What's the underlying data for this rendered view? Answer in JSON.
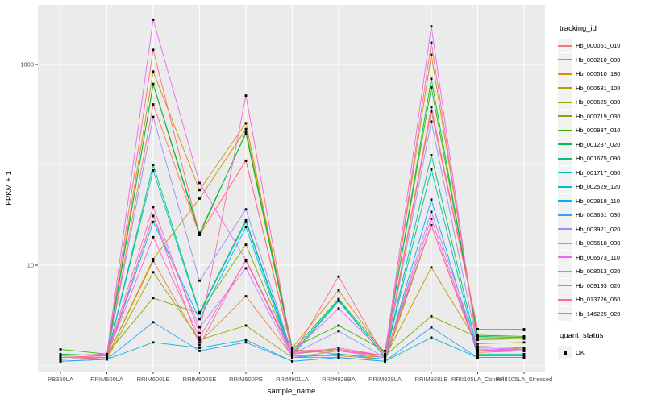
{
  "figure": {
    "y_axis_title": "FPKM + 1",
    "x_axis_title": "sample_name",
    "legend_title": "tracking_id",
    "quant_legend_title": "quant_status",
    "quant_legend_label": "OK",
    "panel_bg": "#EBEBEB",
    "grid_color": "#FFFFFF",
    "axis_text_color": "#4D4D4D",
    "point_color": "#000000",
    "legend_key_bg": "#F2F2F2"
  },
  "chart_data": {
    "type": "line",
    "title": "",
    "xlabel": "sample_name",
    "ylabel": "FPKM + 1",
    "y_scale": "log10",
    "y_tick_values": [
      1000,
      10
    ],
    "y_tick_labels": [
      "1000",
      "10"
    ],
    "y_minor_gridlines": [
      100,
      1
    ],
    "ylim": [
      0.87,
      3900
    ],
    "grid": true,
    "legend_position": "right",
    "point_shape": "filled-square",
    "point_legend": {
      "title": "quant_status",
      "entries": [
        "OK"
      ]
    },
    "categories": [
      "PB350LA",
      "RRIM600LA",
      "RRIM600LE",
      "RRIM600SE",
      "RRIM600PE",
      "RRIM901LA",
      "RRIM928BA",
      "RRIM928LA",
      "RRIM928LE",
      "RRII105LA_Control",
      "RRII105LA_Stressed"
    ],
    "series": [
      {
        "name": "Hb_000061_010",
        "color": "#F8766D",
        "values": [
          1.2,
          1.2,
          400,
          20,
          110,
          1.35,
          1.4,
          1.25,
          375,
          2.3,
          2.25
        ]
      },
      {
        "name": "Hb_000210_030",
        "color": "#EA8331",
        "values": [
          1.15,
          1.2,
          11,
          1.7,
          4.9,
          1.25,
          1.25,
          1.15,
          25,
          1.35,
          1.4
        ]
      },
      {
        "name": "Hb_000510_180",
        "color": "#D89000",
        "values": [
          1.2,
          1.25,
          850,
          56,
          260,
          1.5,
          5.6,
          1.3,
          1250,
          1.8,
          1.85
        ]
      },
      {
        "name": "Hb_000531_100",
        "color": "#C09B00",
        "values": [
          1.15,
          1.2,
          11.5,
          46,
          227,
          1.45,
          1.3,
          1.2,
          9.5,
          1.65,
          1.7
        ]
      },
      {
        "name": "Hb_000625_080",
        "color": "#A3A500",
        "values": [
          1.1,
          1.15,
          8.5,
          1.8,
          2.5,
          1.2,
          1.2,
          1.1,
          25,
          1.4,
          1.5
        ]
      },
      {
        "name": "Hb_000719_030",
        "color": "#7CAE00",
        "values": [
          1.25,
          1.3,
          4.7,
          3.3,
          16,
          1.3,
          1.45,
          1.25,
          3.1,
          1.9,
          1.85
        ]
      },
      {
        "name": "Hb_000937_010",
        "color": "#39B600",
        "values": [
          1.45,
          1.3,
          630,
          20,
          210,
          1.5,
          2.5,
          1.4,
          590,
          2.0,
          1.95
        ]
      },
      {
        "name": "Hb_001287_020",
        "color": "#00BB4E",
        "values": [
          1.3,
          1.25,
          640,
          21,
          205,
          1.4,
          4.6,
          1.3,
          720,
          1.95,
          1.9
        ]
      },
      {
        "name": "Hb_001675_090",
        "color": "#00C087",
        "values": [
          1.2,
          1.2,
          100,
          3.4,
          28,
          1.3,
          4.5,
          1.2,
          125,
          1.4,
          1.4
        ]
      },
      {
        "name": "Hb_001717_060",
        "color": "#00C0B2",
        "values": [
          1.2,
          1.2,
          88,
          3.3,
          27,
          1.25,
          4.4,
          1.2,
          90,
          1.3,
          1.3
        ]
      },
      {
        "name": "Hb_002529_120",
        "color": "#00BCD8",
        "values": [
          1.1,
          1.15,
          1.7,
          1.5,
          1.8,
          1.1,
          1.2,
          1.1,
          1.9,
          1.2,
          1.2
        ]
      },
      {
        "name": "Hb_002818_110",
        "color": "#00B0F6",
        "values": [
          1.15,
          1.2,
          27,
          2.9,
          24,
          1.2,
          1.3,
          1.15,
          45,
          1.25,
          1.25
        ]
      },
      {
        "name": "Hb_003651_030",
        "color": "#35A2FF",
        "values": [
          1.1,
          1.15,
          2.7,
          1.4,
          1.7,
          1.1,
          1.2,
          1.1,
          2.4,
          1.2,
          1.2
        ]
      },
      {
        "name": "Hb_003921_020",
        "color": "#9590FF",
        "values": [
          1.2,
          1.2,
          300,
          7,
          36,
          1.3,
          2.2,
          1.2,
          270,
          1.55,
          1.5
        ]
      },
      {
        "name": "Hb_005618_030",
        "color": "#C77CFF",
        "values": [
          1.2,
          1.2,
          31,
          2.4,
          9.3,
          1.2,
          1.4,
          1.2,
          34,
          1.5,
          1.45
        ]
      },
      {
        "name": "Hb_006573_110",
        "color": "#E76BF3",
        "values": [
          1.25,
          1.3,
          2800,
          66,
          11.3,
          1.35,
          3.7,
          1.3,
          2400,
          1.45,
          1.4
        ]
      },
      {
        "name": "Hb_008013_020",
        "color": "#FA62DB",
        "values": [
          1.2,
          1.25,
          19,
          1.9,
          11,
          1.3,
          1.5,
          1.25,
          25,
          1.4,
          1.45
        ]
      },
      {
        "name": "Hb_009193_020",
        "color": "#FF62BC",
        "values": [
          1.2,
          1.25,
          38,
          2.1,
          490,
          1.35,
          1.4,
          1.25,
          29,
          1.4,
          1.4
        ]
      },
      {
        "name": "Hb_013726_060",
        "color": "#FF6A98",
        "values": [
          1.15,
          1.2,
          31,
          1.6,
          11.3,
          1.25,
          7.7,
          1.2,
          1650,
          1.55,
          1.5
        ]
      },
      {
        "name": "Hb_146225_020",
        "color": "#FF6B80",
        "values": [
          1.2,
          1.25,
          1400,
          20,
          110,
          1.4,
          1.45,
          1.25,
          340,
          2.3,
          2.3
        ]
      }
    ]
  }
}
